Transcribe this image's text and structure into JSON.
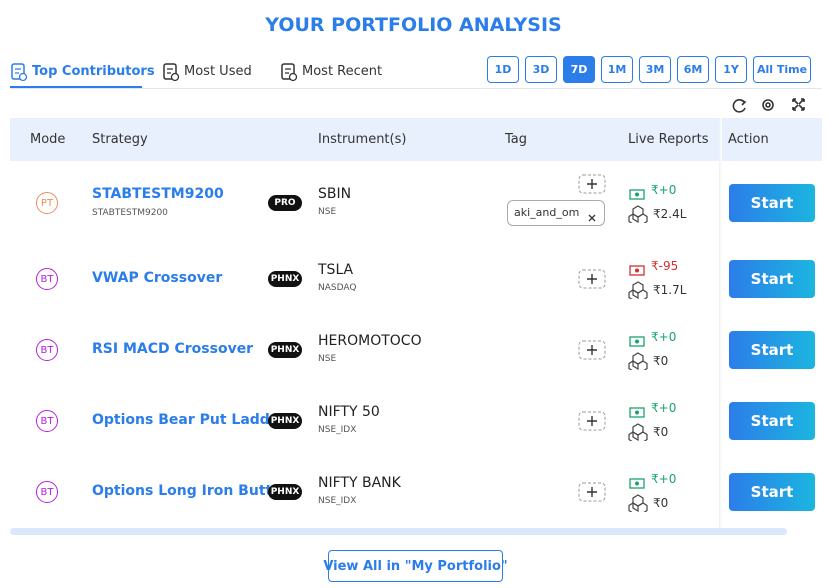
{
  "header": {
    "title": "YOUR PORTFOLIO ANALYSIS"
  },
  "tabs": [
    "Top Contributors",
    "Most Used",
    "Most Recent"
  ],
  "active_tab": 0,
  "periods": [
    "1D",
    "3D",
    "7D",
    "1M",
    "3M",
    "6M",
    "1Y",
    "All Time"
  ],
  "active_period": 2,
  "table": {
    "columns": [
      "Mode",
      "Strategy",
      "Instrument(s)",
      "Tag",
      "Live Reports",
      "Action"
    ],
    "rows": [
      {
        "mode": "PT",
        "mode_color": "#f08a5d",
        "strategy": "STABTESTM9200",
        "strategy_sub": "STABTESTM9200",
        "badge": "PRO",
        "instrument": "SBIN",
        "exchange": "NSE",
        "tags": [
          "aki_and_om"
        ],
        "pnl": "₹+0",
        "pnl_color": "#1aa36b",
        "capital": "₹2.4L",
        "action": "Start"
      },
      {
        "mode": "BT",
        "mode_color": "#b620e0",
        "strategy": "VWAP Crossover",
        "badge": "PHNX",
        "instrument": "TSLA",
        "exchange": "NASDAQ",
        "tags": [],
        "pnl": "₹-95",
        "pnl_color": "#d32f2f",
        "capital": "₹1.7L",
        "action": "Start"
      },
      {
        "mode": "BT",
        "mode_color": "#b620e0",
        "strategy": "RSI MACD Crossover",
        "badge": "PHNX",
        "instrument": "HEROMOTOCO",
        "exchange": "NSE",
        "tags": [],
        "pnl": "₹+0",
        "pnl_color": "#1aa36b",
        "capital": "₹0",
        "action": "Start"
      },
      {
        "mode": "BT",
        "mode_color": "#b620e0",
        "strategy": "Options Bear Put Ladder",
        "badge": "PHNX",
        "instrument": "NIFTY 50",
        "exchange": "NSE_IDX",
        "tags": [],
        "pnl": "₹+0",
        "pnl_color": "#1aa36b",
        "capital": "₹0",
        "action": "Start"
      },
      {
        "mode": "BT",
        "mode_color": "#b620e0",
        "strategy": "Options Long Iron Butte...",
        "badge": "PHNX",
        "instrument": "NIFTY BANK",
        "exchange": "NSE_IDX",
        "tags": [],
        "pnl": "₹+0",
        "pnl_color": "#1aa36b",
        "capital": "₹0",
        "action": "Start"
      }
    ]
  },
  "footer": {
    "button": "View All in \"My Portfolio\""
  }
}
